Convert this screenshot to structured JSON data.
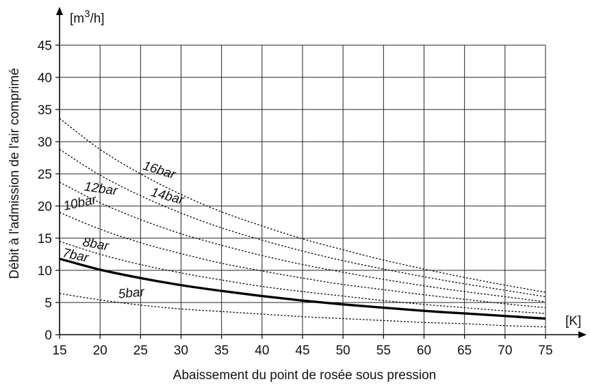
{
  "chart_data": {
    "type": "line",
    "title": "",
    "xlabel": "Abaissement du point de rosée sous pression",
    "ylabel": "Débit à l'admission de l'air comprimé",
    "x_unit": "[K]",
    "y_unit_base": "[m",
    "y_unit_sup": "3",
    "y_unit_tail": "/h]",
    "xlim": [
      15,
      75
    ],
    "ylim": [
      0,
      45
    ],
    "grid": true,
    "x_ticks": [
      15,
      20,
      25,
      30,
      35,
      40,
      45,
      50,
      55,
      60,
      65,
      70,
      75
    ],
    "y_ticks": [
      0,
      5,
      10,
      15,
      20,
      25,
      30,
      35,
      40,
      45
    ],
    "x": [
      15,
      20,
      25,
      30,
      35,
      40,
      45,
      50,
      55,
      60,
      65,
      70,
      75
    ],
    "series": [
      {
        "name": "5bar",
        "style": "dotted",
        "values": [
          6.4,
          5.4,
          4.6,
          4.0,
          3.6,
          3.2,
          2.8,
          2.5,
          2.2,
          1.9,
          1.7,
          1.4,
          1.2
        ]
      },
      {
        "name": "7bar",
        "style": "solid",
        "values": [
          11.8,
          10.1,
          8.8,
          7.7,
          6.8,
          6.0,
          5.3,
          4.7,
          4.2,
          3.7,
          3.3,
          2.9,
          2.5
        ]
      },
      {
        "name": "8bar",
        "style": "dotted",
        "values": [
          14.5,
          12.5,
          10.9,
          9.6,
          8.5,
          7.5,
          6.7,
          6.0,
          5.3,
          4.7,
          4.2,
          3.7,
          3.3
        ]
      },
      {
        "name": "10bar",
        "style": "dotted",
        "values": [
          19.0,
          16.4,
          14.3,
          12.6,
          11.1,
          9.9,
          8.8,
          7.8,
          7.0,
          6.2,
          5.5,
          4.8,
          4.2
        ]
      },
      {
        "name": "12bar",
        "style": "dotted",
        "values": [
          23.7,
          20.5,
          17.9,
          15.7,
          13.9,
          12.3,
          10.9,
          9.7,
          8.6,
          7.6,
          6.7,
          5.9,
          5.1
        ]
      },
      {
        "name": "14bar",
        "style": "dotted",
        "values": [
          28.8,
          24.8,
          21.6,
          18.9,
          16.6,
          14.7,
          13.0,
          11.5,
          10.2,
          9.0,
          7.9,
          6.9,
          5.9
        ]
      },
      {
        "name": "16bar",
        "style": "dotted",
        "values": [
          33.6,
          28.8,
          25.0,
          21.8,
          19.1,
          16.9,
          14.9,
          13.2,
          11.6,
          10.2,
          8.9,
          7.7,
          6.6
        ]
      }
    ]
  }
}
